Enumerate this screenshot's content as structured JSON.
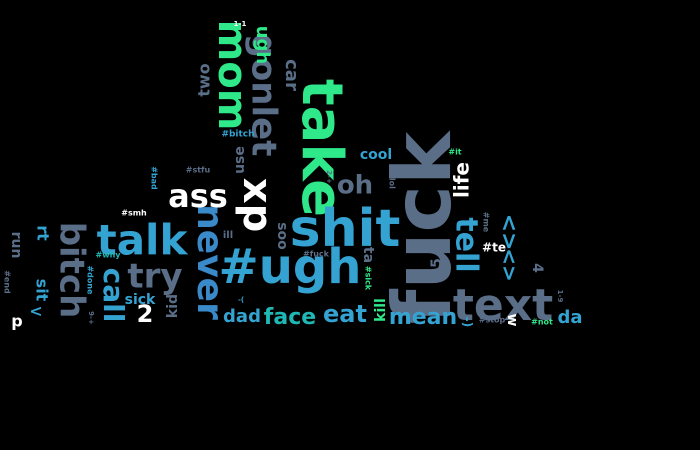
{
  "palette": {
    "background": "#000000",
    "slate": "#5a6e88",
    "sky": "#35a3d2",
    "teal": "#1fb8b4",
    "green": "#2ee88a",
    "blue": "#3a89c9",
    "white": "#ffffff"
  },
  "words": [
    {
      "text": "fuck",
      "color": "slate"
    },
    {
      "text": "take",
      "color": "green"
    },
    {
      "text": "shit",
      "color": "sky"
    },
    {
      "text": "#ugh",
      "color": "sky"
    },
    {
      "text": "text",
      "color": "slate"
    },
    {
      "text": "talk",
      "color": "sky"
    },
    {
      "text": "never",
      "color": "blue"
    },
    {
      "text": "xp",
      "color": "white"
    },
    {
      "text": "mom",
      "color": "green"
    },
    {
      "text": "bitch",
      "color": "slate"
    },
    {
      "text": "gonlet",
      "color": "slate"
    },
    {
      "text": "try",
      "color": "slate"
    },
    {
      "text": "tell",
      "color": "sky"
    },
    {
      "text": "ass",
      "color": "white"
    },
    {
      "text": "call",
      "color": "sky"
    },
    {
      "text": "oh",
      "color": "slate"
    },
    {
      "text": "eat",
      "color": "sky"
    },
    {
      "text": "face",
      "color": "teal"
    },
    {
      "text": "mean",
      "color": "sky"
    },
    {
      "text": "ugh",
      "color": "green"
    },
    {
      "text": "car",
      "color": "slate"
    },
    {
      "text": "life",
      "color": "white"
    },
    {
      "text": "dad",
      "color": "sky"
    },
    {
      "text": "2",
      "color": "white"
    },
    {
      "text": "sick",
      "color": "sky"
    },
    {
      "text": "two",
      "color": "slate"
    },
    {
      "text": "cool",
      "color": "sky"
    },
    {
      "text": "soo",
      "color": "slate"
    },
    {
      "text": "use",
      "color": "slate"
    },
    {
      "text": "kid",
      "color": "slate"
    },
    {
      "text": "rt",
      "color": "sky"
    },
    {
      "text": "sit",
      "color": "sky"
    },
    {
      "text": "run",
      "color": "slate"
    },
    {
      "text": "ta",
      "color": "slate"
    },
    {
      "text": "da",
      "color": "sky"
    },
    {
      "text": "<>",
      "color": "sky"
    },
    {
      "text": "<>",
      "color": "sky"
    },
    {
      "text": "<",
      "color": "sky"
    },
    {
      "text": "5",
      "color": "slate"
    },
    {
      "text": "4",
      "color": "slate"
    },
    {
      "text": "ill",
      "color": "slate"
    },
    {
      "text": "kill",
      "color": "green"
    },
    {
      "text": "p",
      "color": "white"
    },
    {
      "text": "w",
      "color": "white"
    },
    {
      "text": "-)",
      "color": "sky"
    },
    {
      "text": "#te",
      "color": "white"
    },
    {
      "text": "#bitch",
      "color": "sky"
    },
    {
      "text": "#stfu",
      "color": "slate"
    },
    {
      "text": "#smh",
      "color": "white"
    },
    {
      "text": "#why",
      "color": "teal"
    },
    {
      "text": "#fuck",
      "color": "slate"
    },
    {
      "text": "#it",
      "color": "green"
    },
    {
      "text": "#lol",
      "color": "slate"
    },
    {
      "text": "#stop",
      "color": "slate"
    },
    {
      "text": "#not",
      "color": "green"
    },
    {
      "text": "#sick",
      "color": "green"
    },
    {
      "text": "#done",
      "color": "sky"
    },
    {
      "text": "#me",
      "color": "slate"
    },
    {
      "text": "#bad",
      "color": "sky"
    },
    {
      "text": "#end",
      "color": "slate"
    },
    {
      "text": "1-1",
      "color": "white"
    },
    {
      "text": "2-+",
      "color": "slate"
    },
    {
      "text": "1-9",
      "color": "slate"
    },
    {
      "text": "-(",
      "color": "sky"
    },
    {
      "text": "9-+",
      "color": "slate"
    }
  ]
}
